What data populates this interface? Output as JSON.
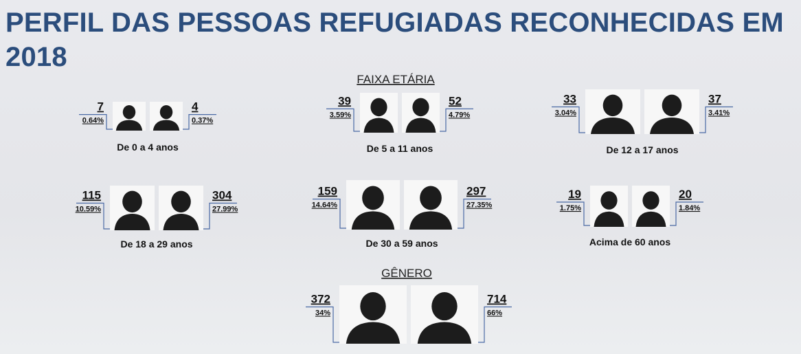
{
  "title": "PERFIL DAS PESSOAS REFUGIADAS RECONHECIDAS EM 2018",
  "age_section": {
    "heading": "FAIXA ETÁRIA",
    "groups": [
      {
        "label": "De 0 a 4 anos",
        "left": {
          "count": "7",
          "percent": "0.64%"
        },
        "right": {
          "count": "4",
          "percent": "0.37%"
        }
      },
      {
        "label": "De 5 a 11 anos",
        "left": {
          "count": "39",
          "percent": "3.59%"
        },
        "right": {
          "count": "52",
          "percent": "4.79%"
        }
      },
      {
        "label": "De 12 a 17 anos",
        "left": {
          "count": "33",
          "percent": "3.04%"
        },
        "right": {
          "count": "37",
          "percent": "3.41%"
        }
      },
      {
        "label": "De 18 a 29 anos",
        "left": {
          "count": "115",
          "percent": "10.59%"
        },
        "right": {
          "count": "304",
          "percent": "27.99%"
        }
      },
      {
        "label": "De 30 a 59 anos",
        "left": {
          "count": "159",
          "percent": "14.64%"
        },
        "right": {
          "count": "297",
          "percent": "27.35%"
        }
      },
      {
        "label": "Acima de 60 anos",
        "left": {
          "count": "19",
          "percent": "1.75%"
        },
        "right": {
          "count": "20",
          "percent": "1.84%"
        }
      }
    ]
  },
  "gender_section": {
    "heading": "GÊNERO",
    "left": {
      "count": "372",
      "percent": "34%"
    },
    "right": {
      "count": "714",
      "percent": "66%"
    }
  }
}
